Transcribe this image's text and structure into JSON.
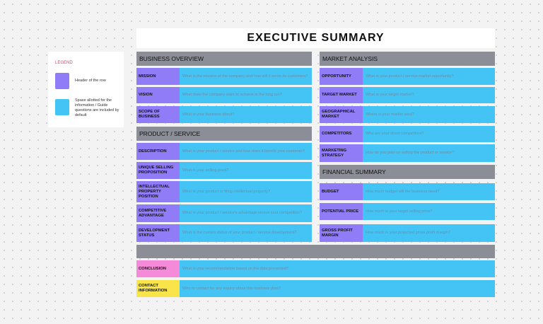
{
  "header": {
    "title": "EXECUTIVE SUMMARY"
  },
  "legend": {
    "title": "LEGEND",
    "items": [
      {
        "label": "Header of the row"
      },
      {
        "label": "Space allotted for the information / Guide questions are included by default"
      }
    ]
  },
  "sections": [
    {
      "title": "BUSINESS OVERVIEW",
      "rows": [
        {
          "label": "MISSION",
          "guide": "What is the mission of the company and how will it serve its customers?"
        },
        {
          "label": "VISION",
          "guide": "What does the company want to achieve in the long run?"
        },
        {
          "label": "SCOPE OF BUSINESS",
          "guide": "What is your business about?"
        }
      ]
    },
    {
      "title": "PRODUCT / SERVICE",
      "rows": [
        {
          "label": "DESCRIPTION",
          "guide": "What is your product / service and how does it benefit your customer?"
        },
        {
          "label": "UNIQUE SELLING PROPOSITION",
          "guide": "What is your selling point?"
        },
        {
          "label": "INTELLECTUAL PROPERTY POSITION",
          "guide": "What is your product or filing intellectual property?"
        },
        {
          "label": "COMPETITIVE ADVANTAGE",
          "guide": "What is your product / service's advantage versus your competition?"
        },
        {
          "label": "DEVELOPMENT STATUS",
          "guide": "What is the current status of your product / service development?"
        }
      ]
    },
    {
      "title": "MARKET ANALYSIS",
      "rows": [
        {
          "label": "OPPORTUNITY",
          "guide": "What is your product / service market opportunity?"
        },
        {
          "label": "TARGET MARKET",
          "guide": "What is your target market?"
        },
        {
          "label": "GEOGRAPHICAL MARKET",
          "guide": "Where is your market area?"
        },
        {
          "label": "COMPETITORS",
          "guide": "Who are your direct competitors?"
        },
        {
          "label": "MARKETING STRATEGY",
          "guide": "How do you plan on selling the product or service?"
        }
      ]
    },
    {
      "title": "FINANCIAL SUMMARY",
      "rows": [
        {
          "label": "BUDGET",
          "guide": "How much budget will the business need?"
        },
        {
          "label": "POTENTIAL PRICE",
          "guide": "How much is your target selling price?"
        },
        {
          "label": "GROSS PROFIT MARGIN",
          "guide": "How much is your projected gross profit margin?"
        }
      ]
    }
  ],
  "closing": {
    "rows": [
      {
        "label": "CONCLUSION",
        "guide": "What is your recommendation based on the data presented?"
      },
      {
        "label": "CONTACT INFORMATION",
        "guide": "Who to contact for any inquiry about this business plan?"
      }
    ]
  }
}
